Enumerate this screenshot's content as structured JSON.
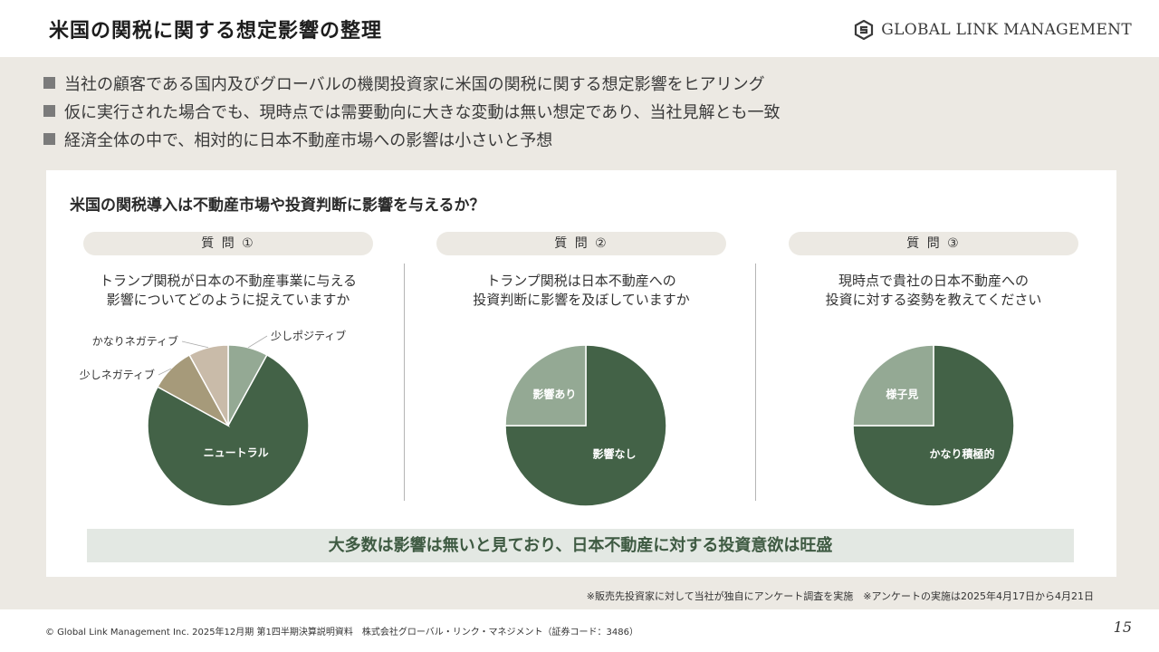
{
  "page": {
    "title": "米国の関税に関する想定影響の整理"
  },
  "logo": {
    "text": "GLOBAL LINK MANAGEMENT",
    "icon": "gs-logo-icon"
  },
  "bullets": [
    "当社の顧客である国内及びグローバルの機関投資家に米国の関税に関する想定影響をヒアリング",
    "仮に実行された場合でも、現時点では需要動向に大きな変動は無い想定であり、当社見解とも一致",
    "経済全体の中で、相対的に日本不動産市場への影響は小さいと予想"
  ],
  "card": {
    "title": "米国の関税導入は不動産市場や投資判断に影響を与えるか？",
    "summary": "大多数は影響は無いと見ており、日本不動産に対する投資意欲は旺盛"
  },
  "questions": [
    {
      "label": "質 問 ①",
      "line1": "トランプ関税が日本の不動産事業に与える",
      "line2": "影響についてどのように捉えていますか"
    },
    {
      "label": "質 問 ②",
      "line1": "トランプ関税は日本不動産への",
      "line2": "投資判断に影響を及ぼしていますか"
    },
    {
      "label": "質 問 ③",
      "line1": "現時点で貴社の日本不動産への",
      "line2": "投資に対する姿勢を教えてください"
    }
  ],
  "colors": {
    "dark_green": "#436247",
    "light_green": "#94a994",
    "tan": "#a69a7a",
    "beige": "#c9bba9",
    "band": "#ece9e3"
  },
  "chart_data": [
    {
      "type": "pie",
      "title": "",
      "slices": [
        {
          "label": "少しポジティブ",
          "value": 8
        },
        {
          "label": "ニュートラル",
          "value": 75
        },
        {
          "label": "少しネガティブ",
          "value": 9
        },
        {
          "label": "かなりネガティブ",
          "value": 8
        }
      ]
    },
    {
      "type": "pie",
      "title": "",
      "slices": [
        {
          "label": "影響なし",
          "value": 75
        },
        {
          "label": "影響あり",
          "value": 25
        }
      ]
    },
    {
      "type": "pie",
      "title": "",
      "slices": [
        {
          "label": "かなり積極的",
          "value": 75
        },
        {
          "label": "様子見",
          "value": 25
        }
      ]
    }
  ],
  "footnote": "※販売先投資家に対して当社が独自にアンケート調査を実施　※アンケートの実施は2025年4月17日から4月21日",
  "copyright": "© Global Link Management Inc. 2025年12月期 第1四半期決算説明資料　株式会社グローバル・リンク・マネジメント（証券コード：3486）",
  "page_number": "15"
}
